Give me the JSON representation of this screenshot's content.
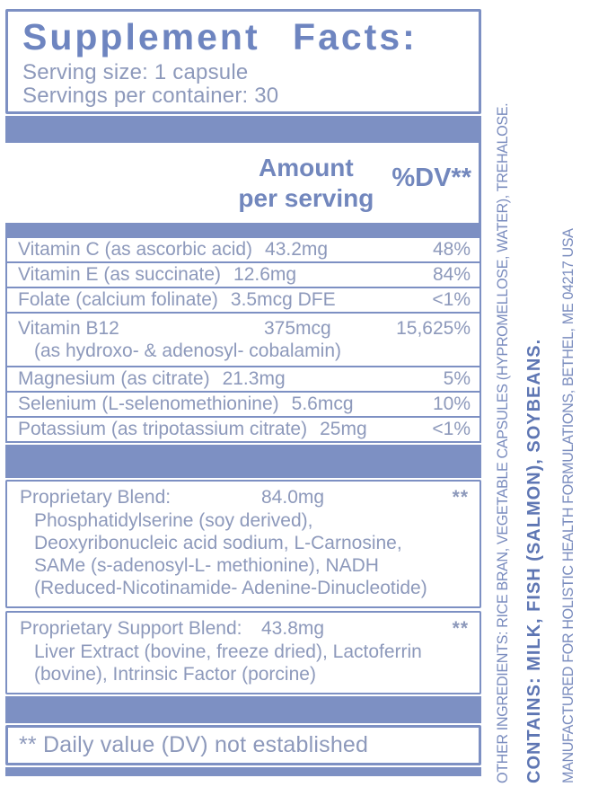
{
  "header": {
    "title": "Supplement Facts:",
    "serving_size": "Serving size: 1 capsule",
    "servings_per_container": "Servings per container: 30"
  },
  "columns": {
    "amount_line1": "Amount",
    "amount_line2": "per serving",
    "dv": "%DV**"
  },
  "table": {
    "rows": [
      {
        "name": "Vitamin C (as ascorbic acid)",
        "amount": "43.2mg",
        "dv": "48%"
      },
      {
        "name": "Vitamin E (as succinate)",
        "amount": "12.6mg",
        "dv": "84%"
      },
      {
        "name": "Folate (calcium folinate)",
        "amount": "3.5mcg DFE",
        "dv": "<1%"
      },
      {
        "name": "Vitamin B12",
        "amount": "375mcg",
        "dv": "15,625%",
        "sub": "(as hydroxo- & adenosyl- cobalamin)"
      },
      {
        "name": "Magnesium (as citrate)",
        "amount": "21.3mg",
        "dv": "5%"
      },
      {
        "name": "Selenium (L-selenomethionine)",
        "amount": "5.6mcg",
        "dv": "10%"
      },
      {
        "name": "Potassium (as tripotassium citrate)",
        "amount": "25mg",
        "dv": "<1%"
      }
    ]
  },
  "blends": [
    {
      "name": "Proprietary Blend:",
      "amount": "84.0mg",
      "dv": "**",
      "lines": [
        "Phosphatidylserine (soy derived),",
        "Deoxyribonucleic acid sodium, L-Carnosine,",
        "SAMe (s-adenosyl-L- methionine), NADH",
        "(Reduced-Nicotinamide- Adenine-Dinucleotide)"
      ]
    },
    {
      "name": "Proprietary Support Blend:",
      "amount": "43.8mg",
      "dv": "**",
      "lines": [
        "Liver Extract (bovine, freeze dried), Lactoferrin",
        "(bovine), Intrinsic Factor (porcine)"
      ]
    }
  ],
  "footnote": "** Daily value (DV) not established",
  "side": {
    "other_ingredients": "OTHER INGREDIENTS: RICE BRAN, VEGETABLE CAPSULES (HYPROMELLOSE, WATER), TREHALOSE.",
    "contains": "CONTAINS: MILK, FISH (SALMON), SOYBEANS.",
    "manufactured": "MANUFACTURED FOR HOLISTIC HEALTH FORMULATIONS, BETHEL, ME 04217 USA"
  },
  "colors": {
    "band_blue": "#7D90C3",
    "title_blue": "#6E85C0",
    "body_text": "#8D99BB",
    "contains_bold_blue": "#5E76B3"
  }
}
